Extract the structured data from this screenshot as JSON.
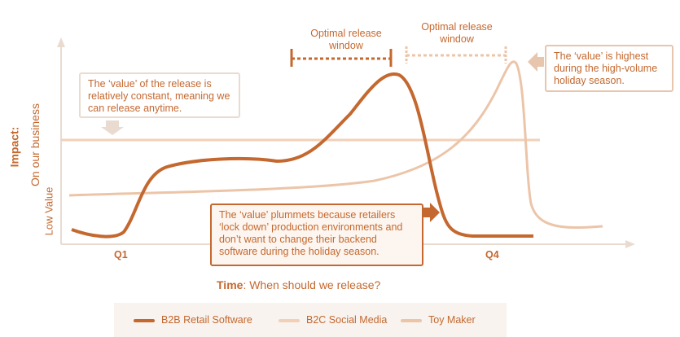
{
  "axis": {
    "y_title": "Impact:",
    "y_subtitle": "On our business",
    "y_low": "Low Value",
    "x_start": "Q1",
    "x_end": "Q4",
    "x_title_bold": "Time",
    "x_title_rest": ": When should we release?"
  },
  "windows": [
    {
      "label": "Optimal release window"
    },
    {
      "label": "Optimal release window"
    }
  ],
  "callouts": [
    {
      "text": "The ‘value’ of the release is relatively constant, meaning we can release anytime."
    },
    {
      "text": "The ‘value’ is highest during the high-volume holiday season."
    },
    {
      "text": "The ‘value’ plummets because retailers ‘lock down’ production environments and don’t want to change their backend software during the holiday season."
    }
  ],
  "legend": [
    {
      "name": "B2B Retail Software",
      "color": "#c4682f"
    },
    {
      "name": "B2C Social Media",
      "color": "#f2d0b8"
    },
    {
      "name": "Toy Maker",
      "color": "#ecc5a9"
    }
  ]
}
